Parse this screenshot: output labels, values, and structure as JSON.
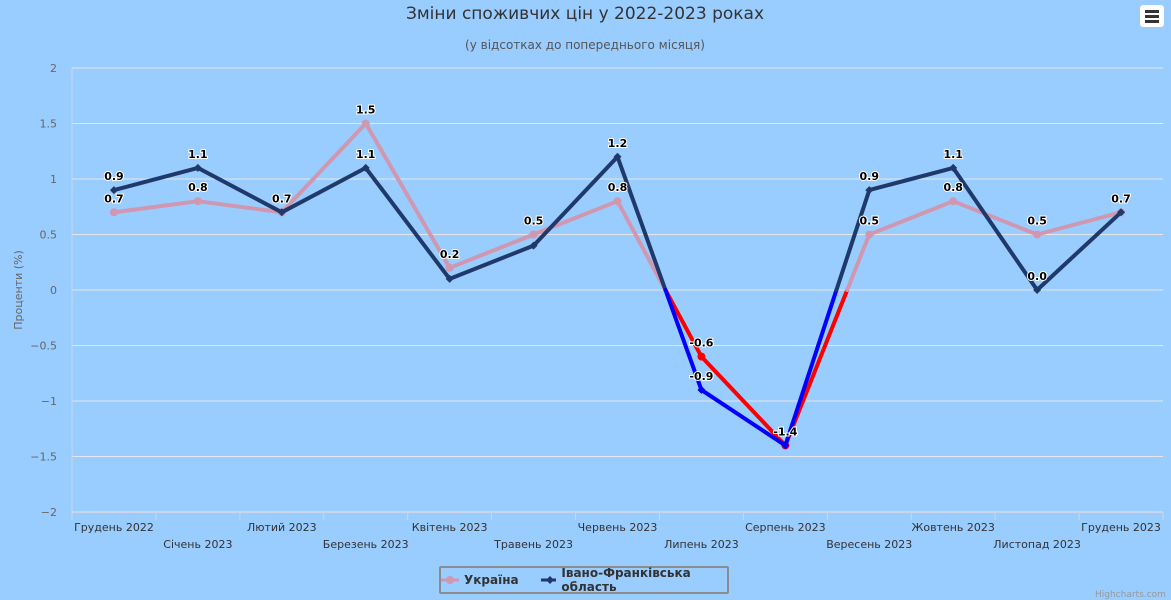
{
  "chart_data": {
    "type": "line",
    "title": "Зміни споживчих цін у 2022-2023 роках",
    "subtitle": "(у відсотках до попереднього місяця)",
    "ylabel": "Проценти (%)",
    "xlabel": "",
    "ylim": [
      -2,
      2
    ],
    "yticks": [
      "2",
      "1.5",
      "1",
      "0.5",
      "0",
      "−0.5",
      "−1",
      "−1.5",
      "−2"
    ],
    "categories": [
      "Грудень 2022",
      "Січень 2023",
      "Лютий 2023",
      "Березень 2023",
      "Квітень 2023",
      "Травень 2023",
      "Червень 2023",
      "Липень 2023",
      "Серпень 2023",
      "Вересень 2023",
      "Жовтень 2023",
      "Листопад 2023",
      "Грудень 2023"
    ],
    "series": [
      {
        "name": "Україна",
        "color": "#d098b0",
        "negativeColor": "#ff0000",
        "values": [
          0.7,
          0.8,
          0.7,
          1.5,
          0.2,
          0.5,
          0.8,
          -0.6,
          -1.4,
          0.5,
          0.8,
          0.5,
          0.7
        ],
        "labels": [
          "0.7",
          "0.8",
          "",
          "1.5",
          "0.2",
          "0.5",
          "0.8",
          "-0.6",
          "",
          "0.5",
          "0.8",
          "0.5",
          ""
        ]
      },
      {
        "name": "Івано-Франківська область",
        "color": "#1f3a6a",
        "negativeColor": "#0000ff",
        "values": [
          0.9,
          1.1,
          0.7,
          1.1,
          0.1,
          0.4,
          1.2,
          -0.9,
          -1.4,
          0.9,
          1.1,
          0.0,
          0.7
        ],
        "labels": [
          "0.9",
          "1.1",
          "0.7",
          "1.1",
          "",
          "",
          "1.2",
          "-0.9",
          "-1.4",
          "0.9",
          "1.1",
          "0.0",
          "0.7"
        ]
      }
    ],
    "grid": true,
    "legend": "bottom-center"
  },
  "credits": "Highcharts.com"
}
